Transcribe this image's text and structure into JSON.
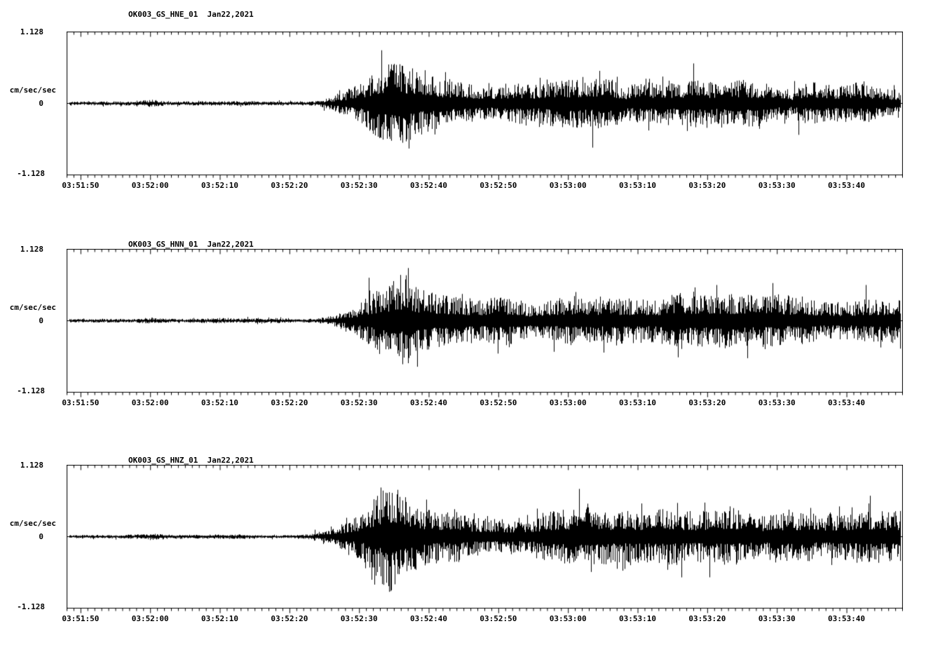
{
  "figure": {
    "background": "#ffffff",
    "trace_color": "#000000",
    "axis_color": "#000000"
  },
  "chart_data": [
    {
      "type": "line",
      "subtype": "seismogram",
      "title": "OK003_GS_HNE_01  Jan22,2021",
      "station": "OK003",
      "network": "GS",
      "channel": "HNE",
      "location": "01",
      "date": "Jan22,2021",
      "ylabel": "cm/sec/sec",
      "y_ticks": [
        "1.128",
        "0",
        "-1.128"
      ],
      "ylim": [
        -1.128,
        1.128
      ],
      "x_start": "03:51:48",
      "x_end": "03:53:48",
      "x_span_seconds": 120,
      "x_tick_interval_seconds": 10,
      "x_tick_labels": [
        "03:51:50",
        "03:52:00",
        "03:52:10",
        "03:52:20",
        "03:52:30",
        "03:52:40",
        "03:52:50",
        "03:53:00",
        "03:53:10",
        "03:53:20",
        "03:53:30",
        "03:53:40"
      ],
      "envelope": [
        [
          0,
          0.026
        ],
        [
          10,
          0.028
        ],
        [
          12,
          0.05
        ],
        [
          14,
          0.03
        ],
        [
          20,
          0.026
        ],
        [
          26,
          0.028
        ],
        [
          30,
          0.026
        ],
        [
          34,
          0.03
        ],
        [
          36,
          0.04
        ],
        [
          38,
          0.1
        ],
        [
          40,
          0.2
        ],
        [
          42,
          0.3
        ],
        [
          44,
          0.48
        ],
        [
          45,
          0.62
        ],
        [
          46,
          0.7
        ],
        [
          48,
          0.62
        ],
        [
          50,
          0.5
        ],
        [
          52,
          0.42
        ],
        [
          54,
          0.34
        ],
        [
          57,
          0.3
        ],
        [
          60,
          0.28
        ],
        [
          64,
          0.26
        ],
        [
          68,
          0.28
        ],
        [
          72,
          0.27
        ],
        [
          76,
          0.3
        ],
        [
          80,
          0.27
        ],
        [
          84,
          0.25
        ],
        [
          88,
          0.29
        ],
        [
          92,
          0.27
        ],
        [
          96,
          0.26
        ],
        [
          100,
          0.28
        ],
        [
          104,
          0.26
        ],
        [
          108,
          0.27
        ],
        [
          112,
          0.28
        ],
        [
          116,
          0.27
        ],
        [
          120,
          0.28
        ]
      ]
    },
    {
      "type": "line",
      "subtype": "seismogram",
      "title": "OK003_GS_HNN_01  Jan22,2021",
      "station": "OK003",
      "network": "GS",
      "channel": "HNN",
      "location": "01",
      "date": "Jan22,2021",
      "ylabel": "cm/sec/sec",
      "y_ticks": [
        "1.128",
        "0",
        "-1.128"
      ],
      "ylim": [
        -1.128,
        1.128
      ],
      "x_start": "03:51:48",
      "x_end": "03:53:48",
      "x_span_seconds": 120,
      "x_tick_interval_seconds": 10,
      "x_tick_labels": [
        "03:51:50",
        "03:52:00",
        "03:52:10",
        "03:52:20",
        "03:52:30",
        "03:52:40",
        "03:52:50",
        "03:53:00",
        "03:53:10",
        "03:53:20",
        "03:53:30",
        "03:53:40"
      ],
      "envelope": [
        [
          0,
          0.024
        ],
        [
          10,
          0.026
        ],
        [
          12,
          0.045
        ],
        [
          14,
          0.028
        ],
        [
          18,
          0.026
        ],
        [
          22,
          0.032
        ],
        [
          24,
          0.028
        ],
        [
          28,
          0.026
        ],
        [
          31,
          0.036
        ],
        [
          33,
          0.028
        ],
        [
          36,
          0.04
        ],
        [
          38,
          0.09
        ],
        [
          40,
          0.18
        ],
        [
          42,
          0.28
        ],
        [
          44,
          0.5
        ],
        [
          45,
          0.65
        ],
        [
          47,
          0.72
        ],
        [
          49,
          0.6
        ],
        [
          51,
          0.48
        ],
        [
          53,
          0.38
        ],
        [
          56,
          0.32
        ],
        [
          60,
          0.3
        ],
        [
          63,
          0.34
        ],
        [
          66,
          0.28
        ],
        [
          70,
          0.27
        ],
        [
          73,
          0.32
        ],
        [
          76,
          0.28
        ],
        [
          80,
          0.3
        ],
        [
          84,
          0.28
        ],
        [
          88,
          0.32
        ],
        [
          92,
          0.29
        ],
        [
          96,
          0.3
        ],
        [
          100,
          0.28
        ],
        [
          104,
          0.31
        ],
        [
          108,
          0.3
        ],
        [
          112,
          0.33
        ],
        [
          116,
          0.32
        ],
        [
          120,
          0.34
        ]
      ]
    },
    {
      "type": "line",
      "subtype": "seismogram",
      "title": "OK003_GS_HNZ_01  Jan22,2021",
      "station": "OK003",
      "network": "GS",
      "channel": "HNZ",
      "location": "01",
      "date": "Jan22,2021",
      "ylabel": "cm/sec/sec",
      "y_ticks": [
        "1.128",
        "0",
        "-1.128"
      ],
      "ylim": [
        -1.128,
        1.128
      ],
      "x_start": "03:51:48",
      "x_end": "03:53:48",
      "x_span_seconds": 120,
      "x_tick_interval_seconds": 10,
      "x_tick_labels": [
        "03:51:50",
        "03:52:00",
        "03:52:10",
        "03:52:20",
        "03:52:30",
        "03:52:40",
        "03:52:50",
        "03:53:00",
        "03:53:10",
        "03:53:20",
        "03:53:30",
        "03:53:40"
      ],
      "envelope": [
        [
          0,
          0.024
        ],
        [
          10,
          0.026
        ],
        [
          12,
          0.04
        ],
        [
          14,
          0.028
        ],
        [
          20,
          0.026
        ],
        [
          26,
          0.028
        ],
        [
          32,
          0.03
        ],
        [
          35,
          0.05
        ],
        [
          37,
          0.1
        ],
        [
          39,
          0.18
        ],
        [
          41,
          0.3
        ],
        [
          43,
          0.45
        ],
        [
          45,
          0.75
        ],
        [
          46,
          1.0
        ],
        [
          47,
          0.85
        ],
        [
          49,
          0.7
        ],
        [
          51,
          0.55
        ],
        [
          53,
          0.45
        ],
        [
          56,
          0.38
        ],
        [
          60,
          0.34
        ],
        [
          64,
          0.32
        ],
        [
          68,
          0.34
        ],
        [
          72,
          0.36
        ],
        [
          75,
          0.4
        ],
        [
          78,
          0.34
        ],
        [
          82,
          0.33
        ],
        [
          86,
          0.36
        ],
        [
          90,
          0.32
        ],
        [
          94,
          0.34
        ],
        [
          98,
          0.36
        ],
        [
          102,
          0.33
        ],
        [
          106,
          0.35
        ],
        [
          110,
          0.34
        ],
        [
          114,
          0.36
        ],
        [
          118,
          0.35
        ],
        [
          120,
          0.36
        ]
      ]
    }
  ]
}
